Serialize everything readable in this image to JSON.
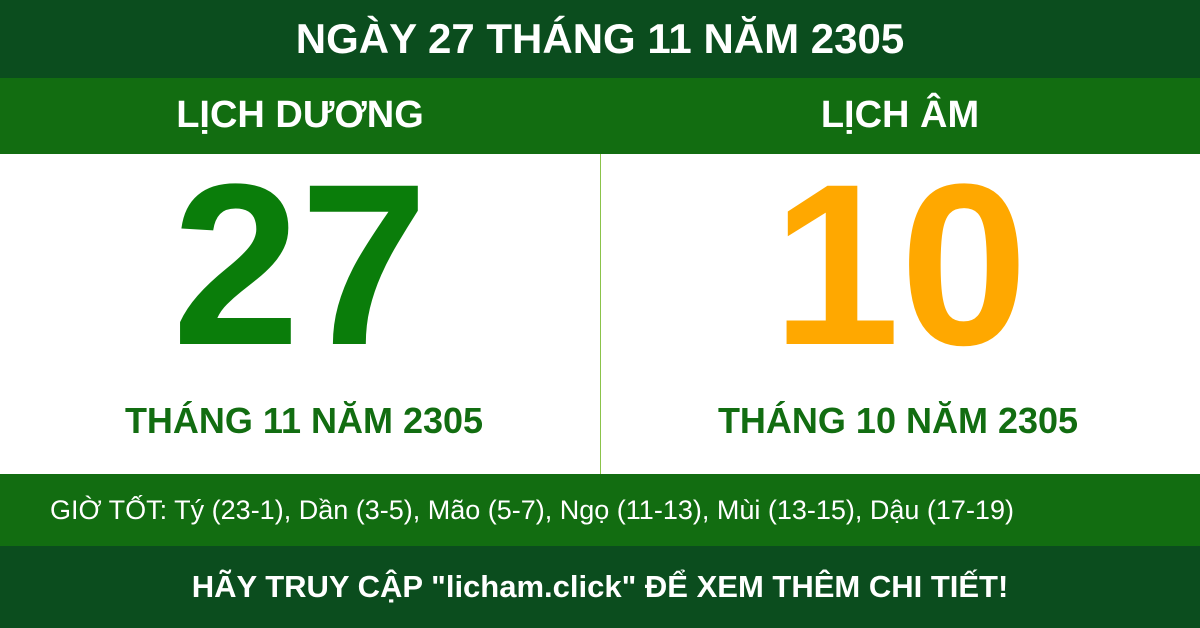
{
  "header": {
    "title": "NGÀY 27 THÁNG 11 NĂM 2305"
  },
  "solar": {
    "label": "LỊCH DƯƠNG",
    "day": "27",
    "month_year": "THÁNG 11 NĂM 2305"
  },
  "lunar": {
    "label": "LỊCH ÂM",
    "day": "10",
    "month_year": "THÁNG 10 NĂM 2305"
  },
  "good_hours": "GIỜ TỐT: Tý (23-1), Dần (3-5), Mão (5-7), Ngọ (11-13), Mùi (13-15), Dậu (17-19)",
  "footer": "HÃY TRUY CẬP \"licham.click\" ĐỂ XEM THÊM CHI TIẾT!"
}
